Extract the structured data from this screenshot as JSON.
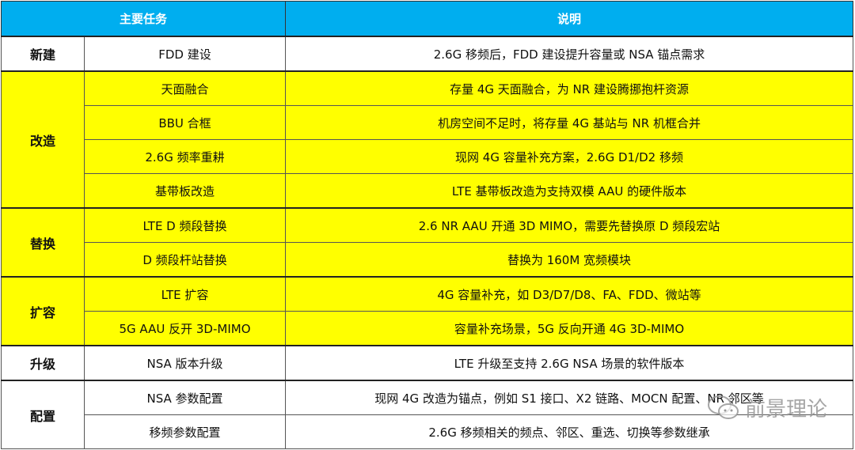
{
  "header": {
    "task": "主要任务",
    "desc": "说明"
  },
  "groups": [
    {
      "category": "新建",
      "color": "white",
      "rows": [
        {
          "task": "FDD 建设",
          "desc": "2.6G 移频后，FDD 建设提升容量或 NSA 锚点需求"
        }
      ]
    },
    {
      "category": "改造",
      "color": "yellow",
      "rows": [
        {
          "task": "天面融合",
          "desc": "存量 4G 天面融合，为 NR 建设腾挪抱杆资源"
        },
        {
          "task": "BBU 合框",
          "desc": "机房空间不足时，将存量 4G 基站与 NR 机框合并"
        },
        {
          "task": "2.6G 频率重耕",
          "desc": "现网 4G 容量补充方案，2.6G D1/D2 移频"
        },
        {
          "task": "基带板改造",
          "desc": "LTE 基带板改造为支持双模 AAU 的硬件版本"
        }
      ]
    },
    {
      "category": "替换",
      "color": "yellow",
      "rows": [
        {
          "task": "LTE D 频段替换",
          "desc": "2.6 NR AAU 开通 3D MIMO，需要先替换原 D 频段宏站"
        },
        {
          "task": "D 频段杆站替换",
          "desc": "替换为 160M 宽频模块"
        }
      ]
    },
    {
      "category": "扩容",
      "color": "yellow",
      "rows": [
        {
          "task": "LTE 扩容",
          "desc": "4G 容量补充，如 D3/D7/D8、FA、FDD、微站等"
        },
        {
          "task": "5G AAU 反开 3D-MIMO",
          "desc": "容量补充场景，5G 反向开通 4G 3D-MIMO"
        }
      ]
    },
    {
      "category": "升级",
      "color": "white",
      "rows": [
        {
          "task": "NSA 版本升级",
          "desc": "LTE 升级至支持 2.6G NSA 场景的软件版本"
        }
      ]
    },
    {
      "category": "配置",
      "color": "white",
      "rows": [
        {
          "task": "NSA 参数配置",
          "desc": "现网 4G 改造为锚点，例如 S1 接口、X2 链路、MOCN 配置、NR 邻区等"
        },
        {
          "task": "移频参数配置",
          "desc": "2.6G 移频相关的频点、邻区、重选、切换等参数继承"
        }
      ]
    }
  ],
  "watermark": "前景理论",
  "colors": {
    "header": "#00aeef",
    "highlight": "#ffff00"
  }
}
